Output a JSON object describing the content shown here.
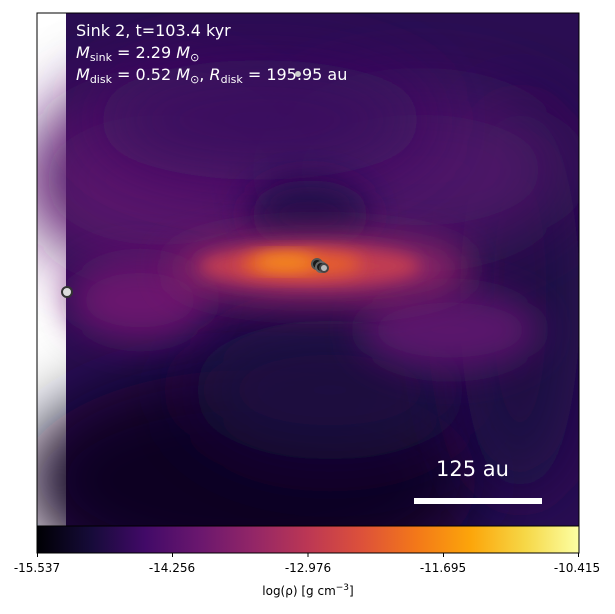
{
  "annotation": {
    "line1": "Sink 2, t=103.4 kyr",
    "sink_mass": {
      "symbol": "M",
      "subscript": "sink",
      "value": "= 2.29",
      "unit": "M",
      "unit_sub": "⊙"
    },
    "disk": {
      "symbol": "M",
      "subscript": "disk",
      "value": "= 0.52",
      "unit": "M",
      "unit_sub": "⊙",
      "r_symbol": "R",
      "r_subscript": "disk",
      "r_value": "= 195.95",
      "r_unit": "au"
    }
  },
  "scale_bar": {
    "label": "125 au"
  },
  "colorbar": {
    "ticks": [
      "-15.537",
      "-14.256",
      "-12.976",
      "-11.695",
      "-10.415"
    ],
    "label_main": "log(ρ) [g cm",
    "label_sup": "−3",
    "label_end": "]",
    "colormap": "inferno"
  }
}
